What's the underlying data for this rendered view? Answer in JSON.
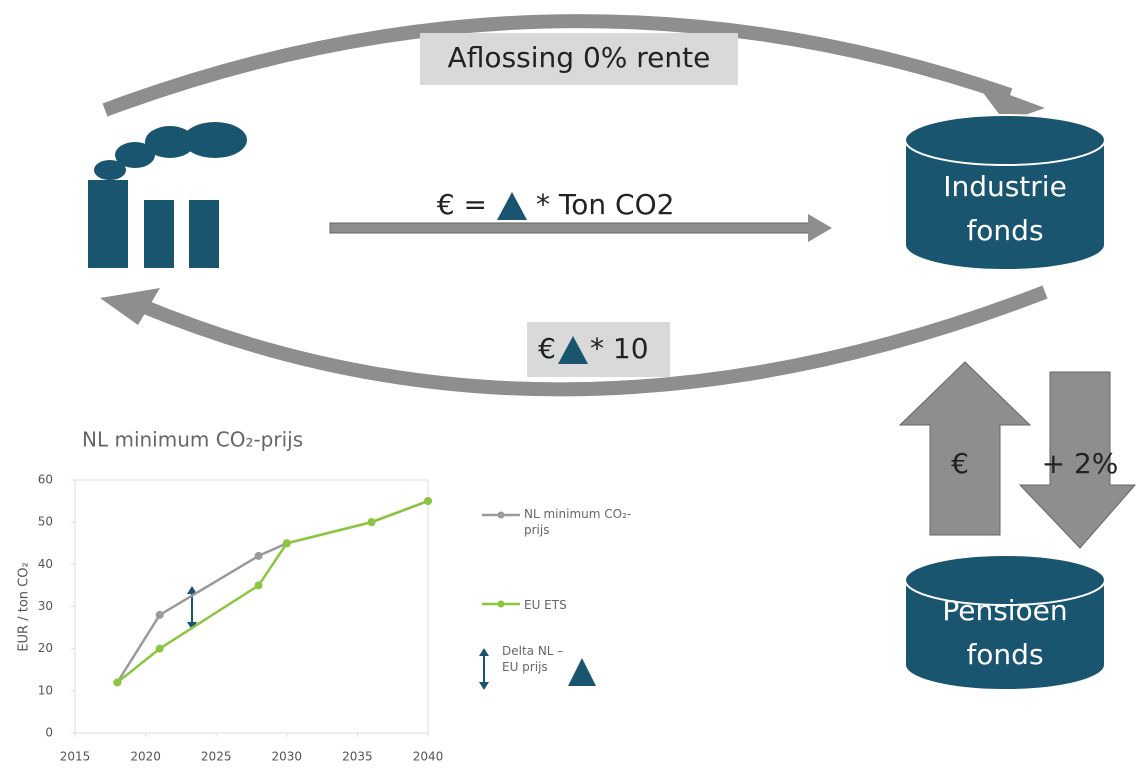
{
  "diagram": {
    "top_label": "Aflossing 0% rente",
    "middle_label_left": "€ =",
    "middle_label_right": "* Ton CO2",
    "bottom_label_left": "€",
    "bottom_label_right": "* 10",
    "industrie_fonds": [
      "Industrie",
      "fonds"
    ],
    "pensioen_fonds": [
      "Pensioen",
      "fonds"
    ],
    "up_arrow_label": "€",
    "down_arrow_label": "+ 2%"
  },
  "chart_data": {
    "type": "line",
    "title": "NL minimum CO₂-prijs",
    "y_label": "EUR / ton CO₂",
    "xlim": [
      2015,
      2040
    ],
    "xticks": [
      2015,
      2020,
      2025,
      2030,
      2035,
      2040
    ],
    "ylim": [
      0,
      60
    ],
    "yticks": [
      0,
      10,
      20,
      30,
      40,
      50,
      60
    ],
    "grid": false,
    "series": [
      {
        "name": "NL minimum CO₂-prijs",
        "color": "#9a9a9a",
        "x": [
          2018,
          2021,
          2028,
          2030,
          2036,
          2040
        ],
        "values": [
          12,
          28,
          42,
          45,
          50,
          55
        ]
      },
      {
        "name": "EU ETS",
        "color": "#8cc63f",
        "x": [
          2018,
          2021,
          2028,
          2030,
          2036,
          2040
        ],
        "values": [
          12,
          20,
          35,
          45,
          50,
          55
        ]
      }
    ],
    "delta_legend": "Delta NL – EU prijs"
  }
}
